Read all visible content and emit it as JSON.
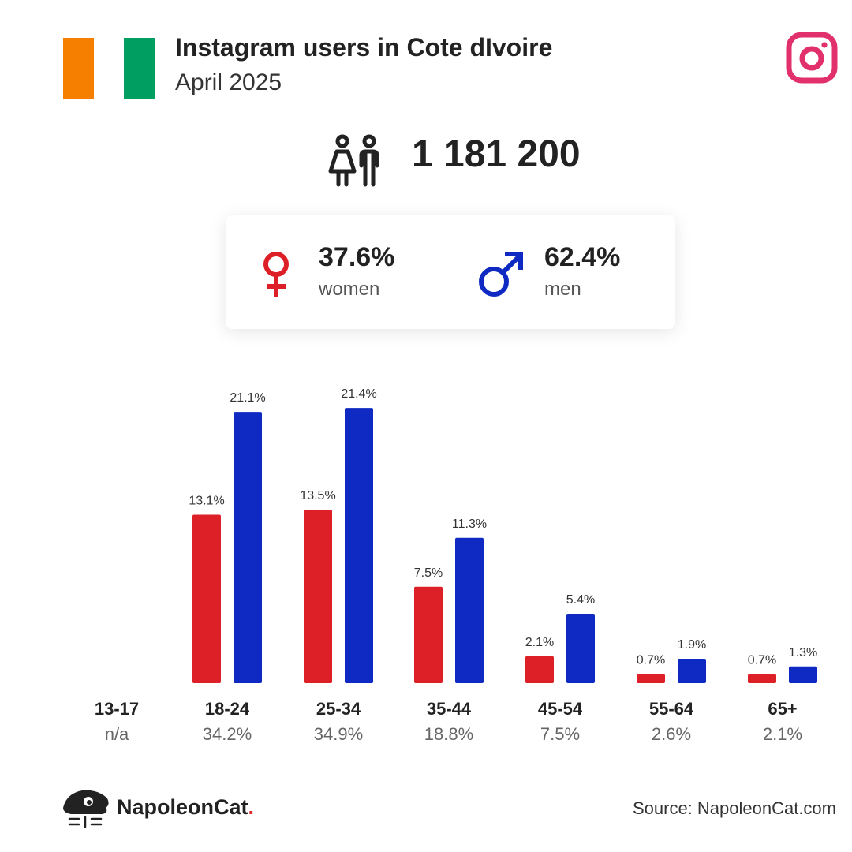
{
  "header": {
    "title": "Instagram users in Cote dIvoire",
    "subtitle": "April 2025",
    "flag_colors": [
      "#F77F00",
      "#FFFFFF",
      "#009E60"
    ],
    "platform_icon": "instagram-icon",
    "platform_color": "#E1306C"
  },
  "total": {
    "icon": "people-icon",
    "value": "1 181 200"
  },
  "gender": {
    "women": {
      "pct": "37.6%",
      "label": "women",
      "icon": "female-symbol-icon",
      "color": "#DD2027"
    },
    "men": {
      "pct": "62.4%",
      "label": "men",
      "icon": "male-symbol-icon",
      "color": "#0F2AC2"
    }
  },
  "chart_data": {
    "type": "bar",
    "categories": [
      "13-17",
      "18-24",
      "25-34",
      "35-44",
      "45-54",
      "55-64",
      "65+"
    ],
    "totals": [
      "n/a",
      "34.2%",
      "34.9%",
      "18.8%",
      "7.5%",
      "2.6%",
      "2.1%"
    ],
    "series": [
      {
        "color": "#DD2027",
        "values": [
          null,
          13.1,
          13.5,
          7.5,
          2.1,
          0.7,
          0.7
        ],
        "labels": [
          "",
          "13.1%",
          "13.5%",
          "7.5%",
          "2.1%",
          "0.7%",
          "0.7%"
        ]
      },
      {
        "color": "#0F2AC2",
        "values": [
          null,
          21.1,
          21.4,
          11.3,
          5.4,
          1.9,
          1.3
        ],
        "labels": [
          "",
          "21.1%",
          "21.4%",
          "11.3%",
          "5.4%",
          "1.9%",
          "1.3%"
        ]
      }
    ]
  },
  "footer": {
    "brand_name": "NapoleonCat",
    "brand_dot": ".",
    "logo_icon": "napoleoncat-logo-icon",
    "source": "Source: NapoleonCat.com"
  }
}
